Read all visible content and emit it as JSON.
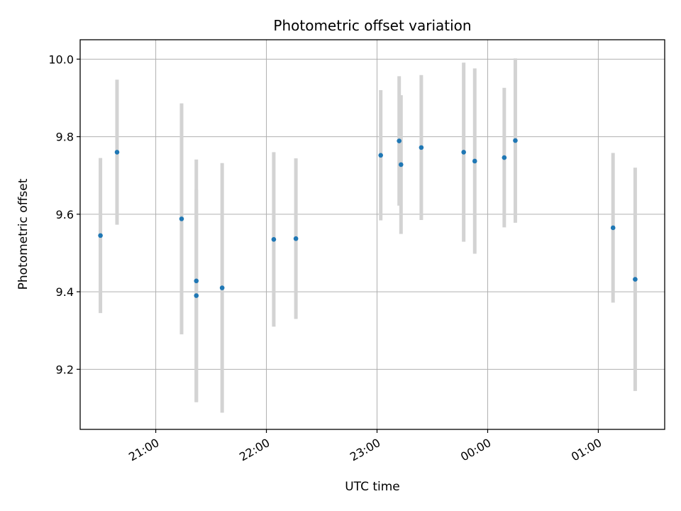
{
  "chart_data": {
    "type": "scatter",
    "title": "Photometric offset variation",
    "xlabel": "UTC time",
    "ylabel": "Photometric offset",
    "xlim": [
      "20:19",
      "01:36"
    ],
    "ylim": [
      9.045,
      10.05
    ],
    "x_ticks": [
      "21:00",
      "22:00",
      "23:00",
      "00:00",
      "01:00"
    ],
    "y_ticks": [
      "9.2",
      "9.4",
      "9.6",
      "9.8",
      "10.0"
    ],
    "grid": true,
    "colors": {
      "point": "#1f77b4",
      "errorbar": "#d3d3d3",
      "grid": "#b0b0b0"
    },
    "points": [
      {
        "x": "20:30",
        "y": 9.545,
        "err": 0.2
      },
      {
        "x": "20:39",
        "y": 9.76,
        "err": 0.187
      },
      {
        "x": "21:14",
        "y": 9.588,
        "err": 0.298
      },
      {
        "x": "21:22",
        "y": 9.428,
        "err": 0.313
      },
      {
        "x": "21:22",
        "y": 9.39,
        "err": 0.273
      },
      {
        "x": "21:36",
        "y": 9.41,
        "err": 0.322
      },
      {
        "x": "22:04",
        "y": 9.535,
        "err": 0.225
      },
      {
        "x": "22:16",
        "y": 9.537,
        "err": 0.207
      },
      {
        "x": "23:02",
        "y": 9.752,
        "err": 0.168
      },
      {
        "x": "23:12",
        "y": 9.789,
        "err": 0.167
      },
      {
        "x": "23:13",
        "y": 9.728,
        "err": 0.179
      },
      {
        "x": "23:24",
        "y": 9.772,
        "err": 0.187
      },
      {
        "x": "23:47",
        "y": 9.76,
        "err": 0.231
      },
      {
        "x": "23:53",
        "y": 9.737,
        "err": 0.239
      },
      {
        "x": "00:09",
        "y": 9.746,
        "err": 0.18
      },
      {
        "x": "00:15",
        "y": 9.79,
        "err": 0.212
      },
      {
        "x": "01:08",
        "y": 9.565,
        "err": 0.193
      },
      {
        "x": "01:20",
        "y": 9.432,
        "err": 0.288
      }
    ]
  }
}
